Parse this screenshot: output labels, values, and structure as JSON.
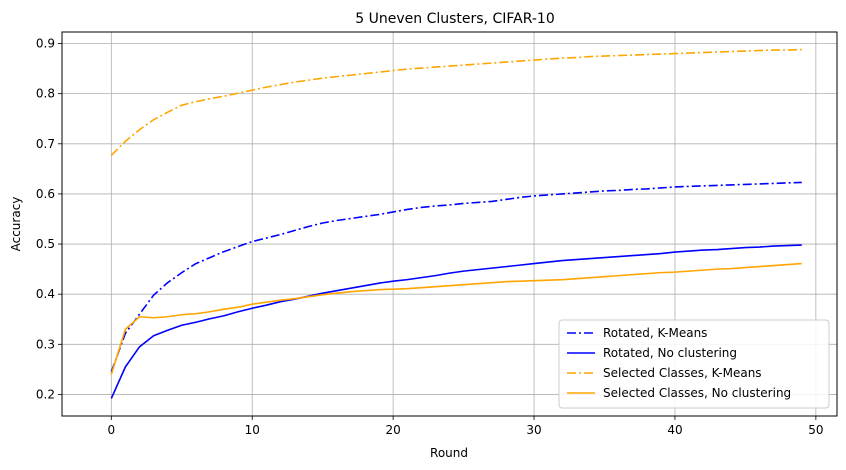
{
  "chart_data": {
    "type": "line",
    "title": "5 Uneven Clusters, CIFAR-10",
    "xlabel": "Round",
    "ylabel": "Accuracy",
    "xlim": [
      -3.5,
      51.5
    ],
    "ylim": [
      0.157,
      0.923
    ],
    "xticks": [
      0,
      10,
      20,
      30,
      40,
      50
    ],
    "yticks": [
      0.2,
      0.3,
      0.4,
      0.5,
      0.6,
      0.7,
      0.8,
      0.9
    ],
    "xtick_labels": [
      "0",
      "10",
      "20",
      "30",
      "40",
      "50"
    ],
    "ytick_labels": [
      "0.2",
      "0.3",
      "0.4",
      "0.5",
      "0.6",
      "0.7",
      "0.8",
      "0.9"
    ],
    "grid": true,
    "legend_position": "lower-right",
    "x": [
      0,
      1,
      2,
      3,
      4,
      5,
      6,
      7,
      8,
      9,
      10,
      11,
      12,
      13,
      14,
      15,
      16,
      17,
      18,
      19,
      20,
      21,
      22,
      23,
      24,
      25,
      26,
      27,
      28,
      29,
      30,
      31,
      32,
      33,
      34,
      35,
      36,
      37,
      38,
      39,
      40,
      41,
      42,
      43,
      44,
      45,
      46,
      47,
      48,
      49
    ],
    "series": [
      {
        "name": "Rotated, K-Means",
        "color": "#0000ff",
        "style": "dashdot",
        "values": [
          0.245,
          0.322,
          0.36,
          0.398,
          0.423,
          0.443,
          0.461,
          0.473,
          0.485,
          0.495,
          0.505,
          0.512,
          0.519,
          0.527,
          0.535,
          0.542,
          0.547,
          0.551,
          0.555,
          0.559,
          0.564,
          0.569,
          0.573,
          0.576,
          0.578,
          0.581,
          0.583,
          0.585,
          0.589,
          0.593,
          0.596,
          0.598,
          0.6,
          0.602,
          0.604,
          0.606,
          0.607,
          0.609,
          0.61,
          0.612,
          0.614,
          0.615,
          0.616,
          0.617,
          0.618,
          0.619,
          0.62,
          0.621,
          0.622,
          0.623
        ]
      },
      {
        "name": "Rotated, No clustering",
        "color": "#0000ff",
        "style": "solid",
        "values": [
          0.192,
          0.255,
          0.295,
          0.317,
          0.328,
          0.338,
          0.344,
          0.351,
          0.357,
          0.365,
          0.372,
          0.378,
          0.385,
          0.39,
          0.396,
          0.402,
          0.407,
          0.412,
          0.417,
          0.422,
          0.426,
          0.429,
          0.433,
          0.437,
          0.442,
          0.446,
          0.449,
          0.452,
          0.455,
          0.458,
          0.461,
          0.464,
          0.467,
          0.469,
          0.471,
          0.473,
          0.475,
          0.477,
          0.479,
          0.481,
          0.484,
          0.486,
          0.488,
          0.489,
          0.491,
          0.493,
          0.494,
          0.496,
          0.497,
          0.498
        ]
      },
      {
        "name": "Selected Classes, K-Means",
        "color": "#ffa500",
        "style": "dashdot",
        "values": [
          0.677,
          0.705,
          0.728,
          0.748,
          0.763,
          0.777,
          0.784,
          0.79,
          0.795,
          0.801,
          0.807,
          0.813,
          0.818,
          0.823,
          0.827,
          0.831,
          0.834,
          0.837,
          0.84,
          0.843,
          0.846,
          0.849,
          0.851,
          0.853,
          0.855,
          0.857,
          0.859,
          0.861,
          0.863,
          0.865,
          0.867,
          0.869,
          0.871,
          0.872,
          0.874,
          0.875,
          0.876,
          0.877,
          0.878,
          0.879,
          0.88,
          0.881,
          0.882,
          0.883,
          0.884,
          0.885,
          0.886,
          0.887,
          0.887,
          0.888
        ]
      },
      {
        "name": "Selected Classes, No clustering",
        "color": "#ffa500",
        "style": "solid",
        "values": [
          0.24,
          0.33,
          0.355,
          0.353,
          0.355,
          0.359,
          0.361,
          0.365,
          0.37,
          0.374,
          0.38,
          0.384,
          0.388,
          0.391,
          0.395,
          0.399,
          0.402,
          0.405,
          0.407,
          0.409,
          0.41,
          0.411,
          0.413,
          0.415,
          0.417,
          0.419,
          0.421,
          0.423,
          0.425,
          0.426,
          0.427,
          0.428,
          0.429,
          0.431,
          0.433,
          0.435,
          0.437,
          0.439,
          0.441,
          0.443,
          0.444,
          0.446,
          0.448,
          0.45,
          0.451,
          0.453,
          0.455,
          0.457,
          0.459,
          0.461
        ]
      }
    ]
  }
}
